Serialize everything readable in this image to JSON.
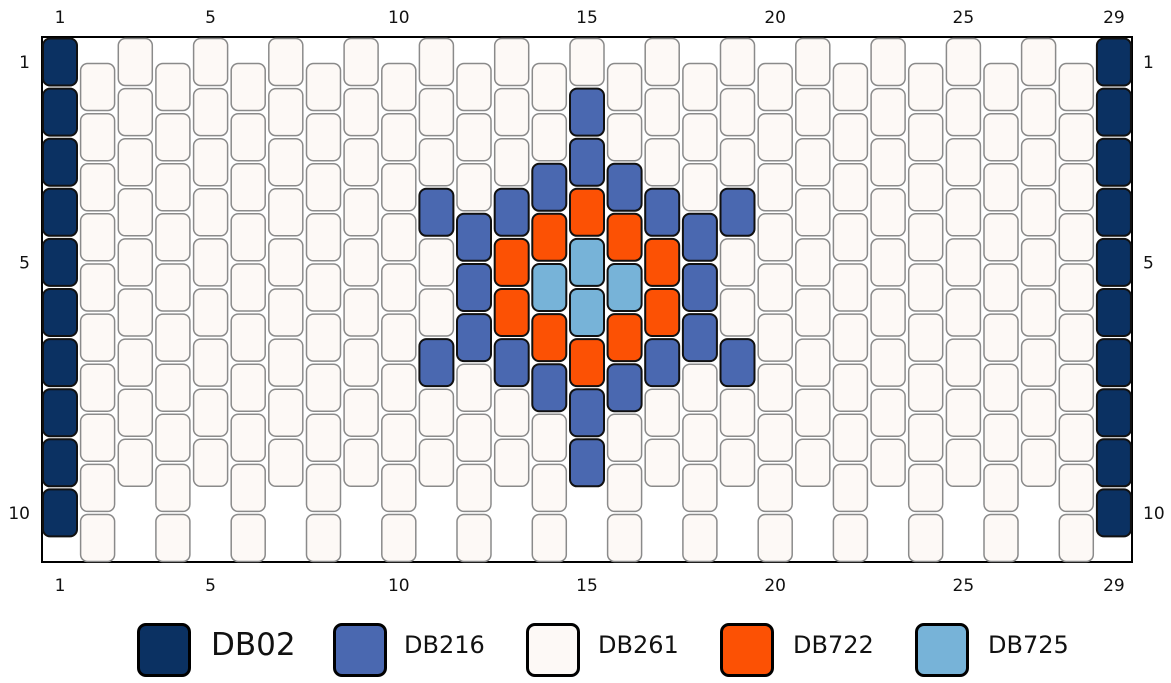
{
  "palette": {
    "DB02": "#0b3162",
    "DB216": "#4a68b0",
    "DB261": "#fdf9f6",
    "DB722": "#fc5104",
    "DB725": "#77b3d8"
  },
  "pattern": {
    "columns": 29,
    "rows": 10,
    "background": "DB261",
    "column_ticks": [
      "1",
      "5",
      "10",
      "15",
      "20",
      "25",
      "29"
    ],
    "row_ticks": [
      "1",
      "5",
      "10"
    ],
    "highlight_cells": [
      [
        1,
        1,
        "DB02"
      ],
      [
        1,
        2,
        "DB02"
      ],
      [
        1,
        3,
        "DB02"
      ],
      [
        1,
        4,
        "DB02"
      ],
      [
        1,
        5,
        "DB02"
      ],
      [
        1,
        6,
        "DB02"
      ],
      [
        1,
        7,
        "DB02"
      ],
      [
        1,
        8,
        "DB02"
      ],
      [
        1,
        9,
        "DB02"
      ],
      [
        1,
        10,
        "DB02"
      ],
      [
        29,
        1,
        "DB02"
      ],
      [
        29,
        2,
        "DB02"
      ],
      [
        29,
        3,
        "DB02"
      ],
      [
        29,
        4,
        "DB02"
      ],
      [
        29,
        5,
        "DB02"
      ],
      [
        29,
        6,
        "DB02"
      ],
      [
        29,
        7,
        "DB02"
      ],
      [
        29,
        8,
        "DB02"
      ],
      [
        29,
        9,
        "DB02"
      ],
      [
        29,
        10,
        "DB02"
      ],
      [
        15,
        2,
        "DB216"
      ],
      [
        15,
        3,
        "DB216"
      ],
      [
        14,
        3.5,
        "DB216"
      ],
      [
        16,
        3.5,
        "DB216"
      ],
      [
        11,
        4,
        "DB216"
      ],
      [
        13,
        4,
        "DB216"
      ],
      [
        15,
        4,
        "DB722"
      ],
      [
        17,
        4,
        "DB216"
      ],
      [
        19,
        4,
        "DB216"
      ],
      [
        12,
        4.5,
        "DB216"
      ],
      [
        14,
        4.5,
        "DB722"
      ],
      [
        16,
        4.5,
        "DB722"
      ],
      [
        18,
        4.5,
        "DB216"
      ],
      [
        13,
        5,
        "DB722"
      ],
      [
        15,
        5,
        "DB725"
      ],
      [
        17,
        5,
        "DB722"
      ],
      [
        12,
        5.5,
        "DB216"
      ],
      [
        14,
        5.5,
        "DB725"
      ],
      [
        16,
        5.5,
        "DB725"
      ],
      [
        18,
        5.5,
        "DB216"
      ],
      [
        13,
        6,
        "DB722"
      ],
      [
        15,
        6,
        "DB725"
      ],
      [
        17,
        6,
        "DB722"
      ],
      [
        12,
        6.5,
        "DB216"
      ],
      [
        14,
        6.5,
        "DB722"
      ],
      [
        16,
        6.5,
        "DB722"
      ],
      [
        18,
        6.5,
        "DB216"
      ],
      [
        11,
        7,
        "DB216"
      ],
      [
        13,
        7,
        "DB216"
      ],
      [
        15,
        7,
        "DB722"
      ],
      [
        17,
        7,
        "DB216"
      ],
      [
        19,
        7,
        "DB216"
      ],
      [
        14,
        7.5,
        "DB216"
      ],
      [
        16,
        7.5,
        "DB216"
      ],
      [
        15,
        8,
        "DB216"
      ],
      [
        15,
        9,
        "DB216"
      ]
    ]
  },
  "legend": [
    {
      "code": "DB02",
      "label": "DB02"
    },
    {
      "code": "DB216",
      "label": "DB216"
    },
    {
      "code": "DB261",
      "label": "DB261"
    },
    {
      "code": "DB722",
      "label": "DB722"
    },
    {
      "code": "DB725",
      "label": "DB725"
    }
  ]
}
